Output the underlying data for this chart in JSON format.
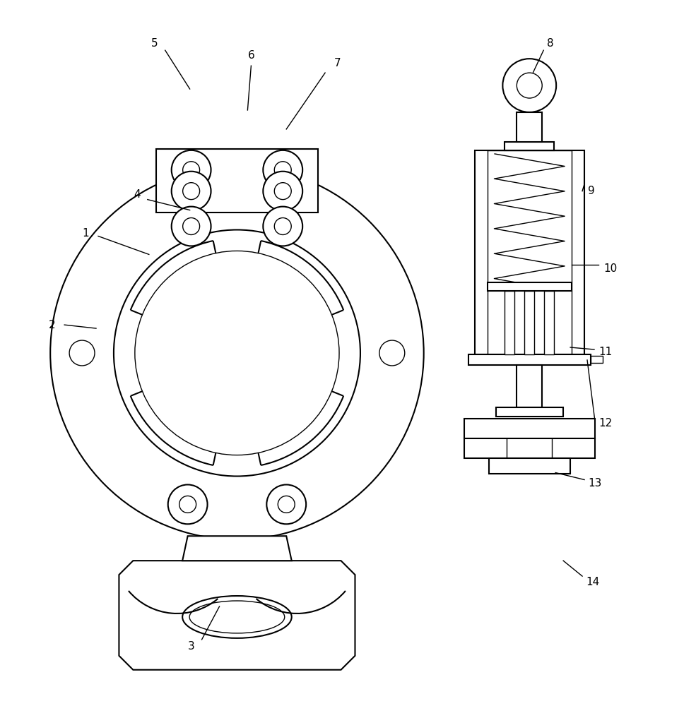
{
  "bg_color": "#ffffff",
  "line_color": "#000000",
  "fig_width": 9.85,
  "fig_height": 10.0,
  "lw_main": 1.5,
  "lw_thin": 1.0,
  "label_font": 11
}
